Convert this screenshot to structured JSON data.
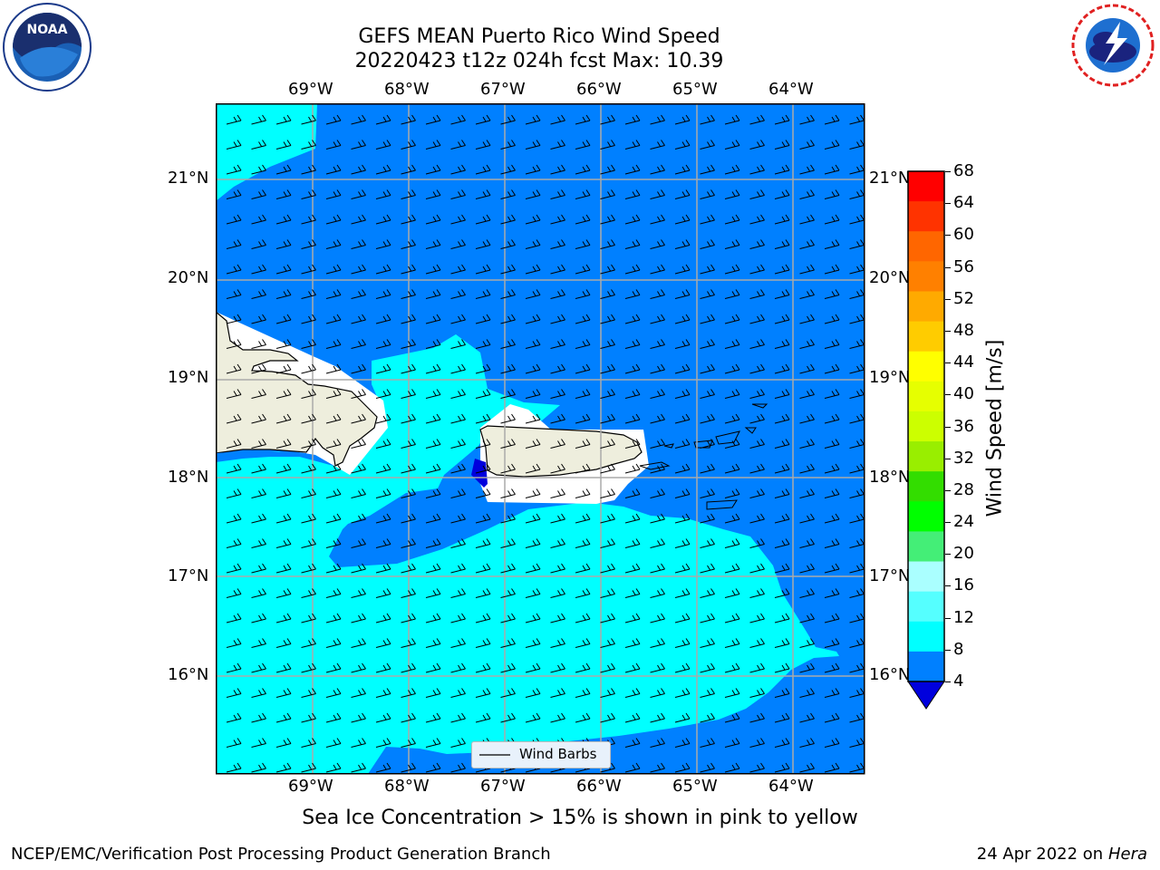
{
  "title_line1": "GEFS MEAN Puerto Rico Wind Speed",
  "title_line2": "20220423 t12z 024h fcst   Max: 10.39",
  "lon_labels": [
    "69°W",
    "68°W",
    "67°W",
    "66°W",
    "65°W",
    "64°W"
  ],
  "lat_labels": [
    "21°N",
    "20°N",
    "19°N",
    "18°N",
    "17°N",
    "16°N"
  ],
  "colorbar": {
    "label": "Wind Speed [m/s]",
    "ticks": [
      "68",
      "64",
      "60",
      "56",
      "52",
      "48",
      "44",
      "40",
      "36",
      "32",
      "28",
      "24",
      "20",
      "16",
      "12",
      "8",
      "4"
    ],
    "colors": [
      "#ff0000",
      "#ff3300",
      "#ff6600",
      "#ff8000",
      "#ffaa00",
      "#ffcc00",
      "#ffff00",
      "#e6ff00",
      "#ccff00",
      "#99ee00",
      "#33dd00",
      "#00ff00",
      "#44ee77",
      "#aaffff",
      "#55ffff",
      "#00ffff",
      "#0080ff"
    ],
    "below_color": "#0000dd"
  },
  "legend_label": "Wind Barbs",
  "note": "Sea Ice Concentration > 15% is shown in pink to yellow",
  "footer_left": "NCEP/EMC/Verification Post Processing Product Generation Branch",
  "footer_right_date": "24 Apr 2022 on",
  "footer_right_host": "Hera",
  "logos": {
    "left": "NOAA",
    "right": "NATIONAL WEATHER SERVICE"
  },
  "colors": {
    "ocean_low": "#0080ff",
    "ocean_mid": "#00ffff",
    "land": "#eeeedd",
    "min_band": "#0000dd"
  }
}
